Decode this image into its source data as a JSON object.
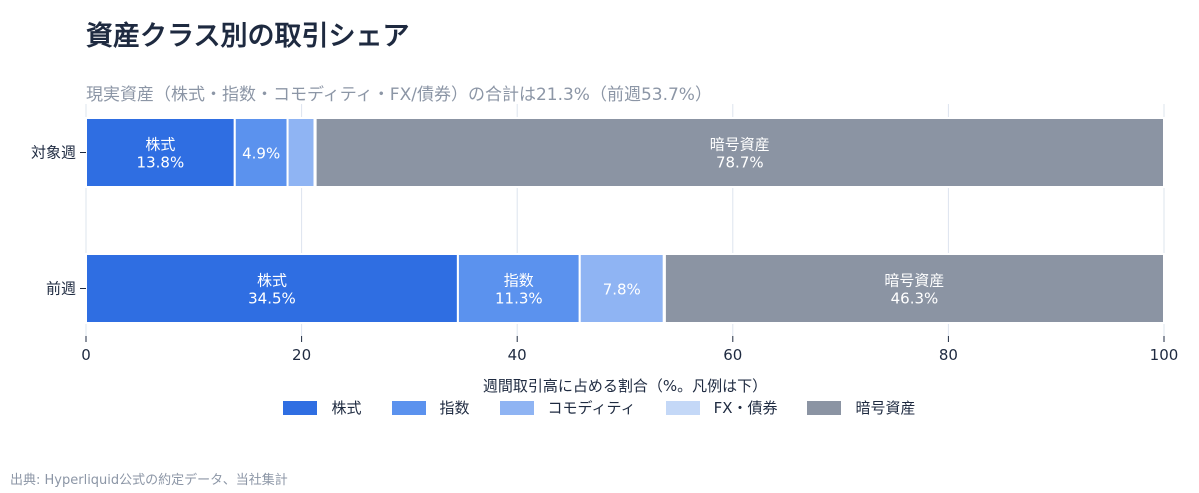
{
  "title": "資産クラス別の取引シェア",
  "subtitle": "現実資産（株式・指数・コモディティ・FX/債券）の合計は21.3%（前週53.7%）",
  "source": "出典: Hyperliquid公式の約定データ、当社集計",
  "chart_data": {
    "type": "bar",
    "orientation": "horizontal",
    "stacked": true,
    "categories": [
      "対象週",
      "前週"
    ],
    "series": [
      {
        "name": "株式",
        "values": [
          13.8,
          34.5
        ],
        "color": "#2f6ee2"
      },
      {
        "name": "指数",
        "values": [
          4.9,
          11.3
        ],
        "color": "#5b92ee"
      },
      {
        "name": "コモディティ",
        "values": [
          2.5,
          7.8
        ],
        "color": "#8fb4f3"
      },
      {
        "name": "FX・債券",
        "values": [
          0.1,
          0.1
        ],
        "color": "#c4d8f7"
      },
      {
        "name": "暗号資産",
        "values": [
          78.7,
          46.3
        ],
        "color": "#8b94a3"
      }
    ],
    "bar_labels": [
      [
        {
          "series": 0,
          "name": "株式",
          "value": "13.8%"
        },
        {
          "series": 1,
          "value": "4.9%"
        },
        {
          "series": 4,
          "name": "暗号資産",
          "value": "78.7%"
        }
      ],
      [
        {
          "series": 0,
          "name": "株式",
          "value": "34.5%"
        },
        {
          "series": 1,
          "name": "指数",
          "value": "11.3%"
        },
        {
          "series": 2,
          "value": "7.8%"
        },
        {
          "series": 4,
          "name": "暗号資産",
          "value": "46.3%"
        }
      ]
    ],
    "xlabel": "週間取引高に占める割合（%。凡例は下）",
    "ylabel": "",
    "xlim": [
      0,
      100
    ],
    "xticks": [
      "0",
      "20",
      "40",
      "60",
      "80",
      "100"
    ],
    "grid": true,
    "legend_position": "bottom"
  }
}
